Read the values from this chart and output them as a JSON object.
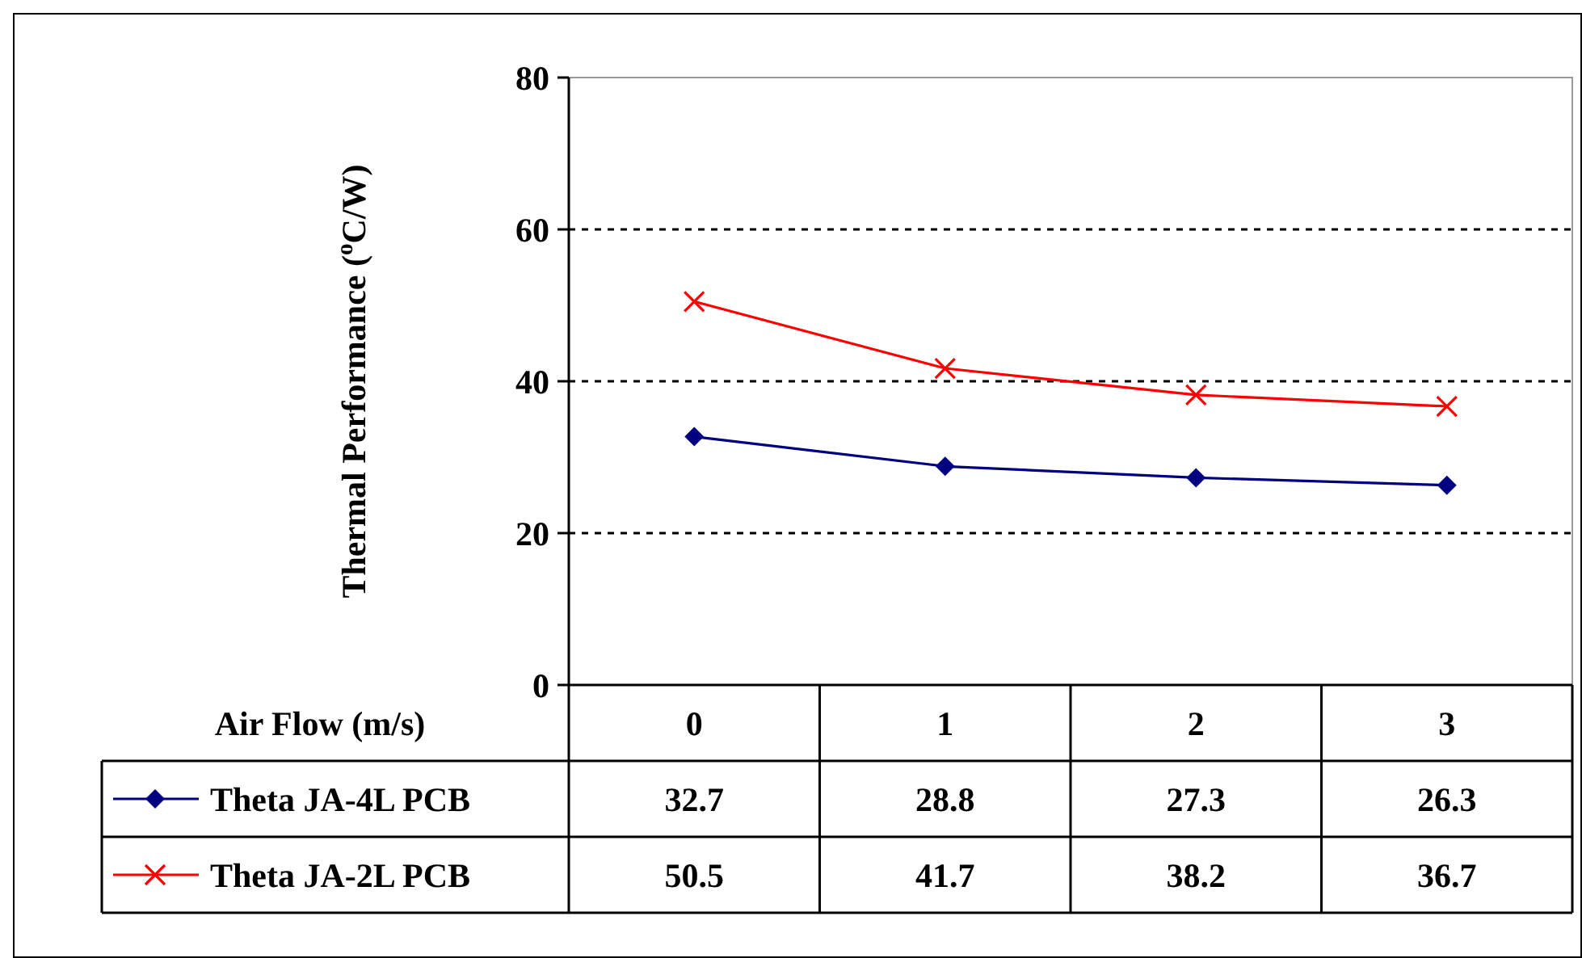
{
  "chart_data": {
    "type": "line",
    "xlabel": "Air Flow (m/s)",
    "ylabel": "Thermal Performance ($^{o}$C/W)",
    "categories": [
      "0",
      "1",
      "2",
      "3"
    ],
    "series": [
      {
        "name": "Theta JA-4L PCB",
        "color": "#000080",
        "marker": "diamond",
        "values": [
          32.7,
          28.8,
          27.3,
          26.3
        ]
      },
      {
        "name": "Theta JA-2L PCB",
        "color": "#ff0000",
        "marker": "cross",
        "values": [
          50.5,
          41.7,
          38.2,
          36.7
        ]
      }
    ],
    "ylim": [
      0,
      80
    ],
    "yticks": [
      0,
      20,
      40,
      60,
      80
    ],
    "grid": "y",
    "data_labels": true,
    "legend": "bottom left",
    "line_style": "solid"
  }
}
